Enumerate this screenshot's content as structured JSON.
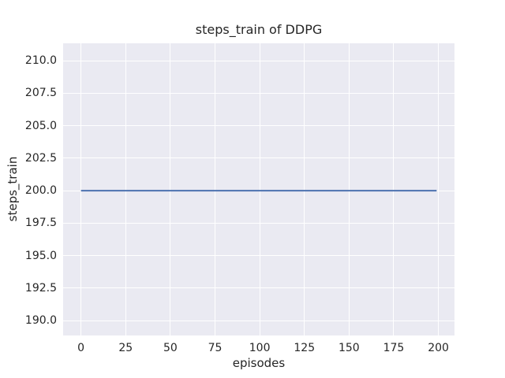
{
  "figure": {
    "title": "steps_train of DDPG",
    "xlabel": "episodes",
    "ylabel": "steps_train"
  },
  "chart_data": {
    "type": "line",
    "title": "steps_train of DDPG",
    "xlabel": "episodes",
    "ylabel": "steps_train",
    "series": [
      {
        "name": "steps_train",
        "x": [
          0,
          199
        ],
        "values": [
          200,
          200
        ],
        "color": "#4c72b0",
        "linewidth": 2
      }
    ],
    "xlim": [
      -10,
      209
    ],
    "ylim": [
      188.85,
      211.35
    ],
    "xticks": [
      0,
      25,
      50,
      75,
      100,
      125,
      150,
      175,
      200
    ],
    "xtick_labels": [
      "0",
      "25",
      "50",
      "75",
      "100",
      "125",
      "150",
      "175",
      "200"
    ],
    "yticks": [
      190.0,
      192.5,
      195.0,
      197.5,
      200.0,
      202.5,
      205.0,
      207.5,
      210.0
    ],
    "ytick_labels": [
      "190.0",
      "192.5",
      "195.0",
      "197.5",
      "200.0",
      "202.5",
      "205.0",
      "207.5",
      "210.0"
    ],
    "grid": true,
    "legend": false,
    "style": {
      "plot_bg": "#eaeaf2",
      "grid_color": "#ffffff",
      "text_color": "#262626",
      "figure_bg": "#ffffff"
    }
  }
}
